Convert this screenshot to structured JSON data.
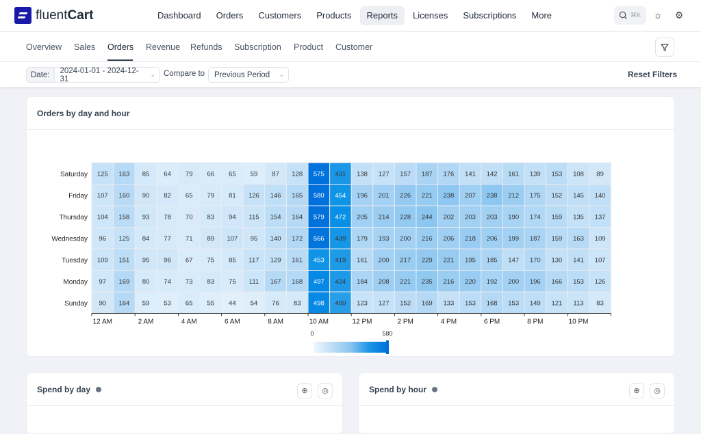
{
  "brand": {
    "name_light": "fluent",
    "name_bold": "Cart"
  },
  "nav": {
    "items": [
      "Dashboard",
      "Orders",
      "Customers",
      "Products",
      "Reports",
      "Licenses",
      "Subscriptions",
      "More"
    ],
    "active": "Reports",
    "search_shortcut": "⌘K"
  },
  "subnav": {
    "items": [
      "Overview",
      "Sales",
      "Orders",
      "Revenue",
      "Refunds",
      "Subscription",
      "Product",
      "Customer"
    ],
    "active": "Orders"
  },
  "filters": {
    "date_label": "Date:",
    "date_value": "2024-01-01 - 2024-12-31",
    "compare_label": "Compare to",
    "compare_value": "Previous Period",
    "reset_label": "Reset Filters"
  },
  "heatmap_card": {
    "title": "Orders by day and hour"
  },
  "chart_data": {
    "type": "heatmap",
    "title": "Orders by day and hour",
    "rows": [
      "Saturday",
      "Friday",
      "Thursday",
      "Wednesday",
      "Tuesday",
      "Monday",
      "Sunday"
    ],
    "x_tick_labels": [
      "12 AM",
      "2 AM",
      "4 AM",
      "6 AM",
      "8 AM",
      "10 AM",
      "12 PM",
      "2 PM",
      "4 PM",
      "6 PM",
      "8 PM",
      "10 PM"
    ],
    "values": [
      [
        125,
        163,
        85,
        64,
        79,
        66,
        65,
        59,
        87,
        128,
        575,
        431,
        138,
        127,
        157,
        187,
        176,
        141,
        142,
        161,
        139,
        153,
        108,
        89
      ],
      [
        107,
        160,
        90,
        82,
        65,
        79,
        81,
        126,
        146,
        165,
        580,
        454,
        196,
        201,
        226,
        221,
        238,
        207,
        238,
        212,
        175,
        152,
        145,
        140
      ],
      [
        104,
        158,
        93,
        78,
        70,
        83,
        94,
        115,
        154,
        164,
        579,
        472,
        205,
        214,
        228,
        244,
        202,
        203,
        203,
        190,
        174,
        159,
        135,
        137
      ],
      [
        96,
        125,
        84,
        77,
        71,
        89,
        107,
        95,
        140,
        172,
        566,
        439,
        179,
        193,
        200,
        216,
        206,
        218,
        206,
        199,
        187,
        159,
        163,
        109
      ],
      [
        109,
        151,
        95,
        96,
        67,
        75,
        85,
        117,
        129,
        161,
        453,
        419,
        161,
        200,
        217,
        229,
        221,
        195,
        185,
        147,
        170,
        130,
        141,
        107
      ],
      [
        97,
        169,
        80,
        74,
        73,
        83,
        75,
        111,
        167,
        168,
        497,
        424,
        184,
        208,
        221,
        235,
        216,
        220,
        192,
        200,
        196,
        166,
        153,
        126
      ],
      [
        90,
        164,
        59,
        53,
        65,
        55,
        44,
        54,
        76,
        83,
        498,
        400,
        123,
        127,
        152,
        169,
        133,
        153,
        168,
        153,
        149,
        121,
        113,
        83
      ]
    ],
    "scale": {
      "min": 0,
      "max": 580,
      "min_label": "0",
      "max_label": "580",
      "color_low": "#f0f7fd",
      "color_high": "#0070dd"
    }
  },
  "spend_day": {
    "title": "Spend by day"
  },
  "spend_hour": {
    "title": "Spend by hour"
  }
}
